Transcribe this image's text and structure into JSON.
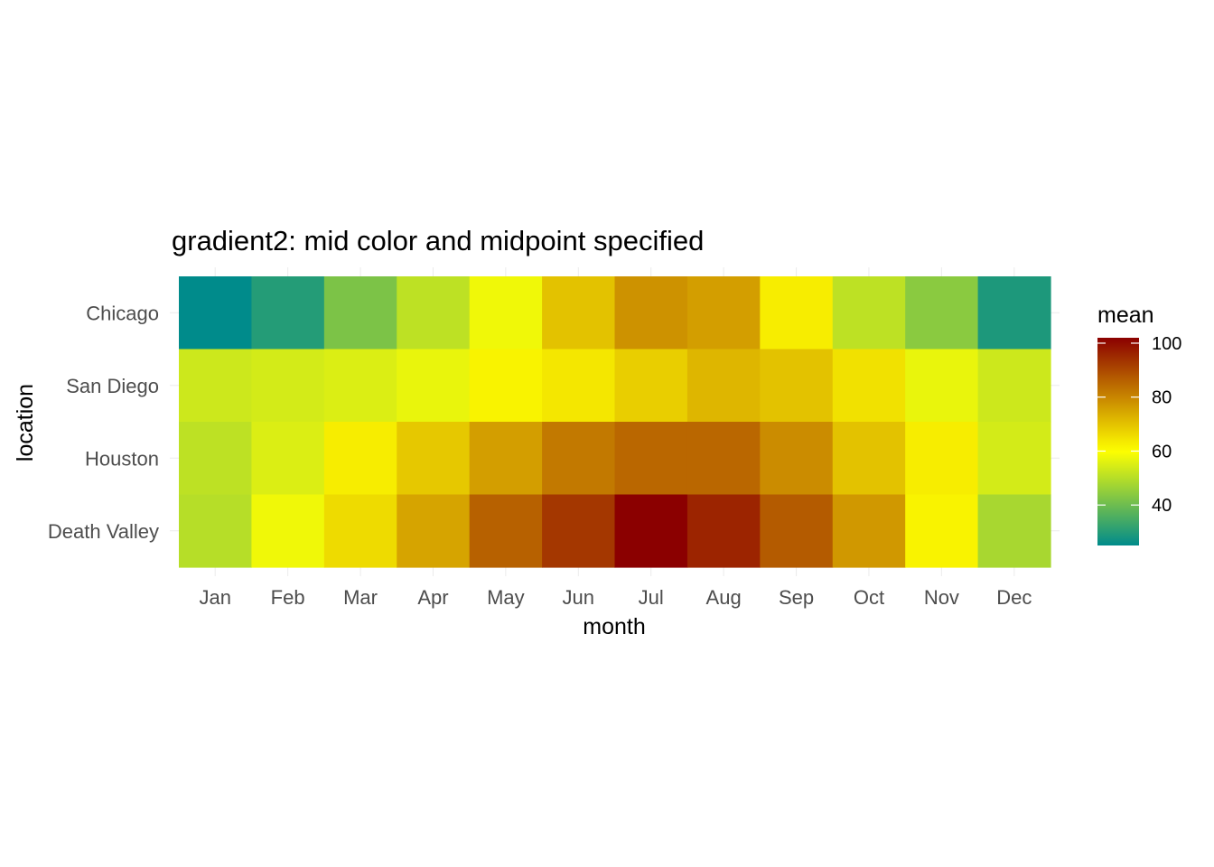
{
  "chart_data": {
    "type": "heatmap",
    "title": "gradient2: mid color and midpoint specified",
    "xlabel": "month",
    "ylabel": "location",
    "x": [
      "Jan",
      "Feb",
      "Mar",
      "Apr",
      "May",
      "Jun",
      "Jul",
      "Aug",
      "Sep",
      "Oct",
      "Nov",
      "Dec"
    ],
    "y": [
      "Chicago",
      "San Diego",
      "Houston",
      "Death Valley"
    ],
    "values": [
      [
        25,
        30,
        42,
        51,
        58,
        70,
        78,
        76,
        63,
        51,
        44,
        29
      ],
      [
        53,
        54,
        55,
        57,
        62,
        64,
        68,
        72,
        70,
        65,
        57,
        53
      ],
      [
        51,
        55,
        63,
        69,
        76,
        82,
        85,
        85,
        79,
        70,
        63,
        54
      ],
      [
        50,
        58,
        66,
        75,
        86,
        93,
        102,
        96,
        87,
        77,
        62,
        48
      ]
    ],
    "legend": {
      "title": "mean",
      "position": "right",
      "ticks": [
        40,
        60,
        80,
        100
      ],
      "range": [
        25,
        102
      ]
    },
    "scale": {
      "low": "#008B8B",
      "mid": "#FFFF00",
      "high": "#8B0000",
      "midpoint": 60
    },
    "grid": true
  }
}
